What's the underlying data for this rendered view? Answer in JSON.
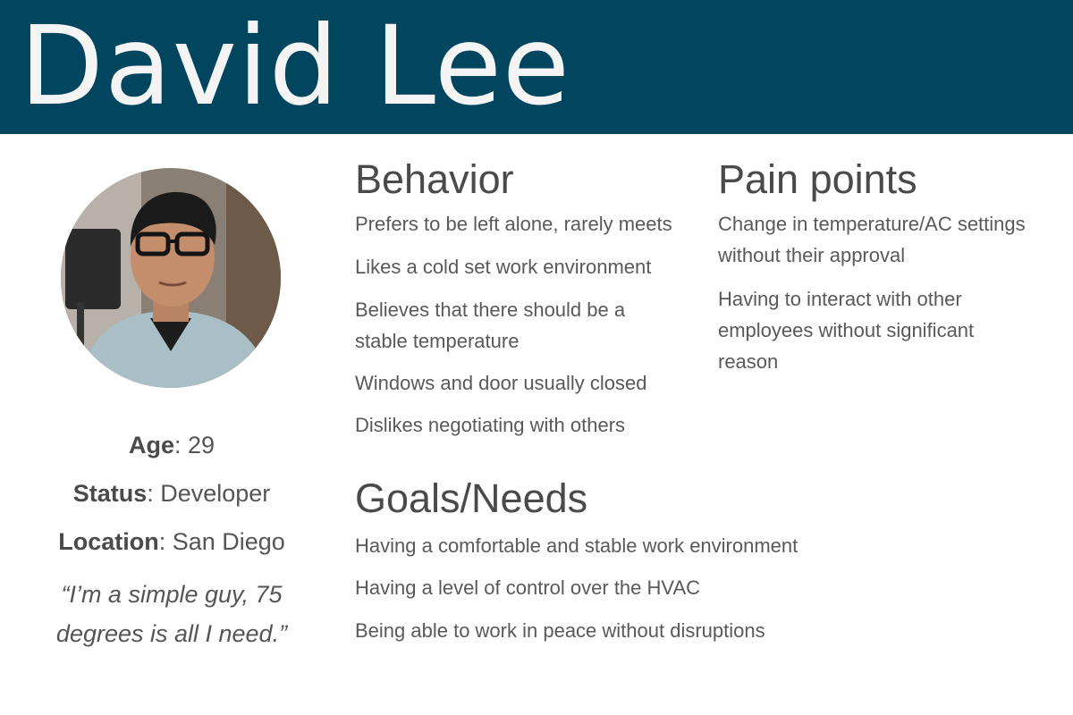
{
  "persona": {
    "name": "David Lee",
    "age_label": "Age",
    "age_value": ": 29",
    "status_label": "Status",
    "status_value": ": Developer",
    "location_label": "Location",
    "location_value": ": San Diego",
    "quote_line1": "“I’m a simple guy, 75",
    "quote_line2": "degrees is all I need.”"
  },
  "behavior": {
    "title": "Behavior",
    "items": [
      "Prefers to be left alone, rarely meets",
      "Likes a cold set work environment",
      "Believes that there should be a stable temperature",
      "Windows and door usually closed",
      "Dislikes negotiating with others"
    ]
  },
  "pain_points": {
    "title": "Pain points",
    "items": [
      "Change in temperature/AC settings without their approval",
      "Having to interact with other employees without significant reason"
    ]
  },
  "goals": {
    "title": "Goals/Needs",
    "items": [
      "Having a comfortable and stable work environment",
      "Having a level of control over the HVAC",
      "Being able to work in peace without disruptions"
    ]
  },
  "colors": {
    "header_bg": "#01455e",
    "header_text": "#f4f4f4",
    "body_text": "#4a4a4a"
  }
}
